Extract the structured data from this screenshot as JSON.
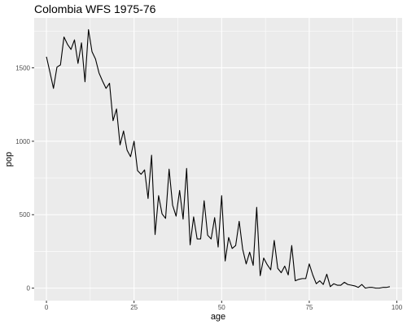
{
  "chart_data": {
    "type": "line",
    "title": "Colombia WFS 1975-76",
    "xlabel": "age",
    "ylabel": "pop",
    "xlim": [
      -3.5,
      101.5
    ],
    "ylim": [
      -85,
      1840
    ],
    "grid": true,
    "background": "#ebebeb",
    "grid_major_color": "#ffffff",
    "line_color": "#000000",
    "x_ticks": [
      0,
      25,
      50,
      75,
      100
    ],
    "x_tick_labels": [
      "0",
      "25",
      "50",
      "75",
      "100"
    ],
    "y_ticks": [
      0,
      500,
      1000,
      1500
    ],
    "y_tick_labels": [
      "0",
      "500",
      "1000",
      "1500"
    ],
    "series": [
      {
        "x": [
          0,
          1,
          2,
          3,
          4,
          5,
          6,
          7,
          8,
          9,
          10,
          11,
          12,
          13,
          14,
          15,
          16,
          17,
          18,
          19,
          20,
          21,
          22,
          23,
          24,
          25,
          26,
          27,
          28,
          29,
          30,
          31,
          32,
          33,
          34,
          35,
          36,
          37,
          38,
          39,
          40,
          41,
          42,
          43,
          44,
          45,
          46,
          47,
          48,
          49,
          50,
          51,
          52,
          53,
          54,
          55,
          56,
          57,
          58,
          59,
          60,
          61,
          62,
          63,
          64,
          65,
          66,
          67,
          68,
          69,
          70,
          71,
          72,
          73,
          74,
          75,
          76,
          77,
          78,
          79,
          80,
          81,
          82,
          83,
          84,
          85,
          86,
          87,
          88,
          89,
          90,
          91,
          92,
          93,
          94,
          95,
          96,
          97,
          98
        ],
        "values": [
          1575,
          1470,
          1360,
          1505,
          1520,
          1710,
          1660,
          1625,
          1690,
          1530,
          1670,
          1405,
          1760,
          1610,
          1560,
          1465,
          1410,
          1360,
          1395,
          1140,
          1220,
          975,
          1070,
          940,
          895,
          1000,
          800,
          775,
          805,
          610,
          905,
          365,
          630,
          505,
          475,
          810,
          565,
          490,
          665,
          470,
          815,
          295,
          485,
          335,
          335,
          595,
          360,
          335,
          480,
          280,
          630,
          185,
          345,
          270,
          290,
          455,
          265,
          165,
          245,
          155,
          550,
          85,
          205,
          160,
          125,
          325,
          135,
          105,
          150,
          90,
          290,
          50,
          60,
          65,
          65,
          165,
          90,
          30,
          50,
          25,
          95,
          10,
          30,
          20,
          20,
          40,
          25,
          20,
          15,
          5,
          25,
          0,
          5,
          5,
          0,
          0,
          5,
          5,
          10
        ]
      }
    ]
  }
}
